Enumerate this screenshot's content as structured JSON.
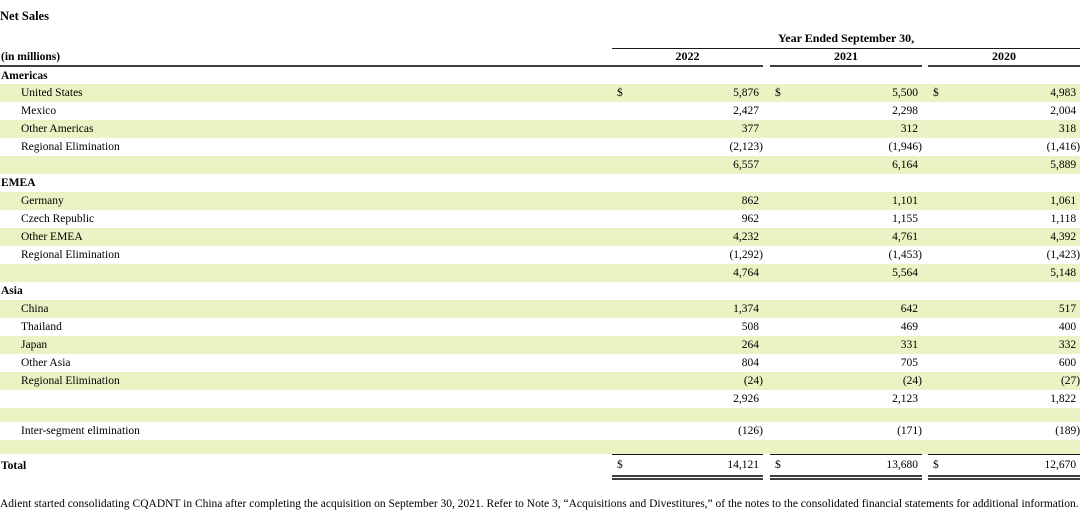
{
  "title": "Net Sales",
  "currency_symbol": "$",
  "colors": {
    "band": "#ebf2c3",
    "rule": "#3f3f3f",
    "text": "#000000"
  },
  "header": {
    "span_label": "Year Ended September 30,",
    "unit_label": "(in millions)",
    "years": [
      "2022",
      "2021",
      "2020"
    ]
  },
  "rows": [
    {
      "type": "section",
      "band": false,
      "label": "Americas"
    },
    {
      "type": "data",
      "band": true,
      "label": "United States",
      "dollar": true,
      "values": [
        "5,876",
        "5,500",
        "4,983"
      ]
    },
    {
      "type": "data",
      "band": false,
      "label": "Mexico",
      "dollar": false,
      "values": [
        "2,427",
        "2,298",
        "2,004"
      ]
    },
    {
      "type": "data",
      "band": true,
      "label": "Other Americas",
      "dollar": false,
      "values": [
        "377",
        "312",
        "318"
      ]
    },
    {
      "type": "data",
      "band": false,
      "label": "Regional Elimination",
      "dollar": false,
      "underline": true,
      "values": [
        "(2,123)",
        "(1,946)",
        "(1,416)"
      ]
    },
    {
      "type": "subtotal",
      "band": true,
      "label": "",
      "dollar": false,
      "values": [
        "6,557",
        "6,164",
        "5,889"
      ]
    },
    {
      "type": "section",
      "band": false,
      "label": "EMEA"
    },
    {
      "type": "data",
      "band": true,
      "label": "Germany",
      "dollar": false,
      "values": [
        "862",
        "1,101",
        "1,061"
      ]
    },
    {
      "type": "data",
      "band": false,
      "label": "Czech Republic",
      "dollar": false,
      "values": [
        "962",
        "1,155",
        "1,118"
      ]
    },
    {
      "type": "data",
      "band": true,
      "label": "Other EMEA",
      "dollar": false,
      "values": [
        "4,232",
        "4,761",
        "4,392"
      ]
    },
    {
      "type": "data",
      "band": false,
      "label": "Regional Elimination",
      "dollar": false,
      "underline": true,
      "values": [
        "(1,292)",
        "(1,453)",
        "(1,423)"
      ]
    },
    {
      "type": "subtotal",
      "band": true,
      "label": "",
      "dollar": false,
      "values": [
        "4,764",
        "5,564",
        "5,148"
      ]
    },
    {
      "type": "section",
      "band": false,
      "label": "Asia"
    },
    {
      "type": "data",
      "band": true,
      "label": "China",
      "dollar": false,
      "values": [
        "1,374",
        "642",
        "517"
      ]
    },
    {
      "type": "data",
      "band": false,
      "label": "Thailand",
      "dollar": false,
      "values": [
        "508",
        "469",
        "400"
      ]
    },
    {
      "type": "data",
      "band": true,
      "label": "Japan",
      "dollar": false,
      "values": [
        "264",
        "331",
        "332"
      ]
    },
    {
      "type": "data",
      "band": false,
      "label": "Other Asia",
      "dollar": false,
      "values": [
        "804",
        "705",
        "600"
      ]
    },
    {
      "type": "data",
      "band": true,
      "label": "Regional Elimination",
      "dollar": false,
      "underline": true,
      "values": [
        "(24)",
        "(24)",
        "(27)"
      ]
    },
    {
      "type": "subtotal",
      "band": false,
      "label": "",
      "dollar": false,
      "values": [
        "2,926",
        "2,123",
        "1,822"
      ]
    },
    {
      "type": "spacer",
      "band": true
    },
    {
      "type": "data",
      "band": false,
      "label": "Inter-segment elimination",
      "dollar": false,
      "values": [
        "(126)",
        "(171)",
        "(189)"
      ]
    },
    {
      "type": "spacer",
      "band": true
    },
    {
      "type": "total",
      "band": false,
      "label": "Total",
      "dollar": true,
      "values": [
        "14,121",
        "13,680",
        "12,670"
      ]
    }
  ],
  "footnote": "Adient started consolidating CQADNT in China after completing the acquisition on September 30, 2021. Refer to Note 3, “Acquisitions and Divestitures,” of the notes to the consolidated financial statements for additional information."
}
